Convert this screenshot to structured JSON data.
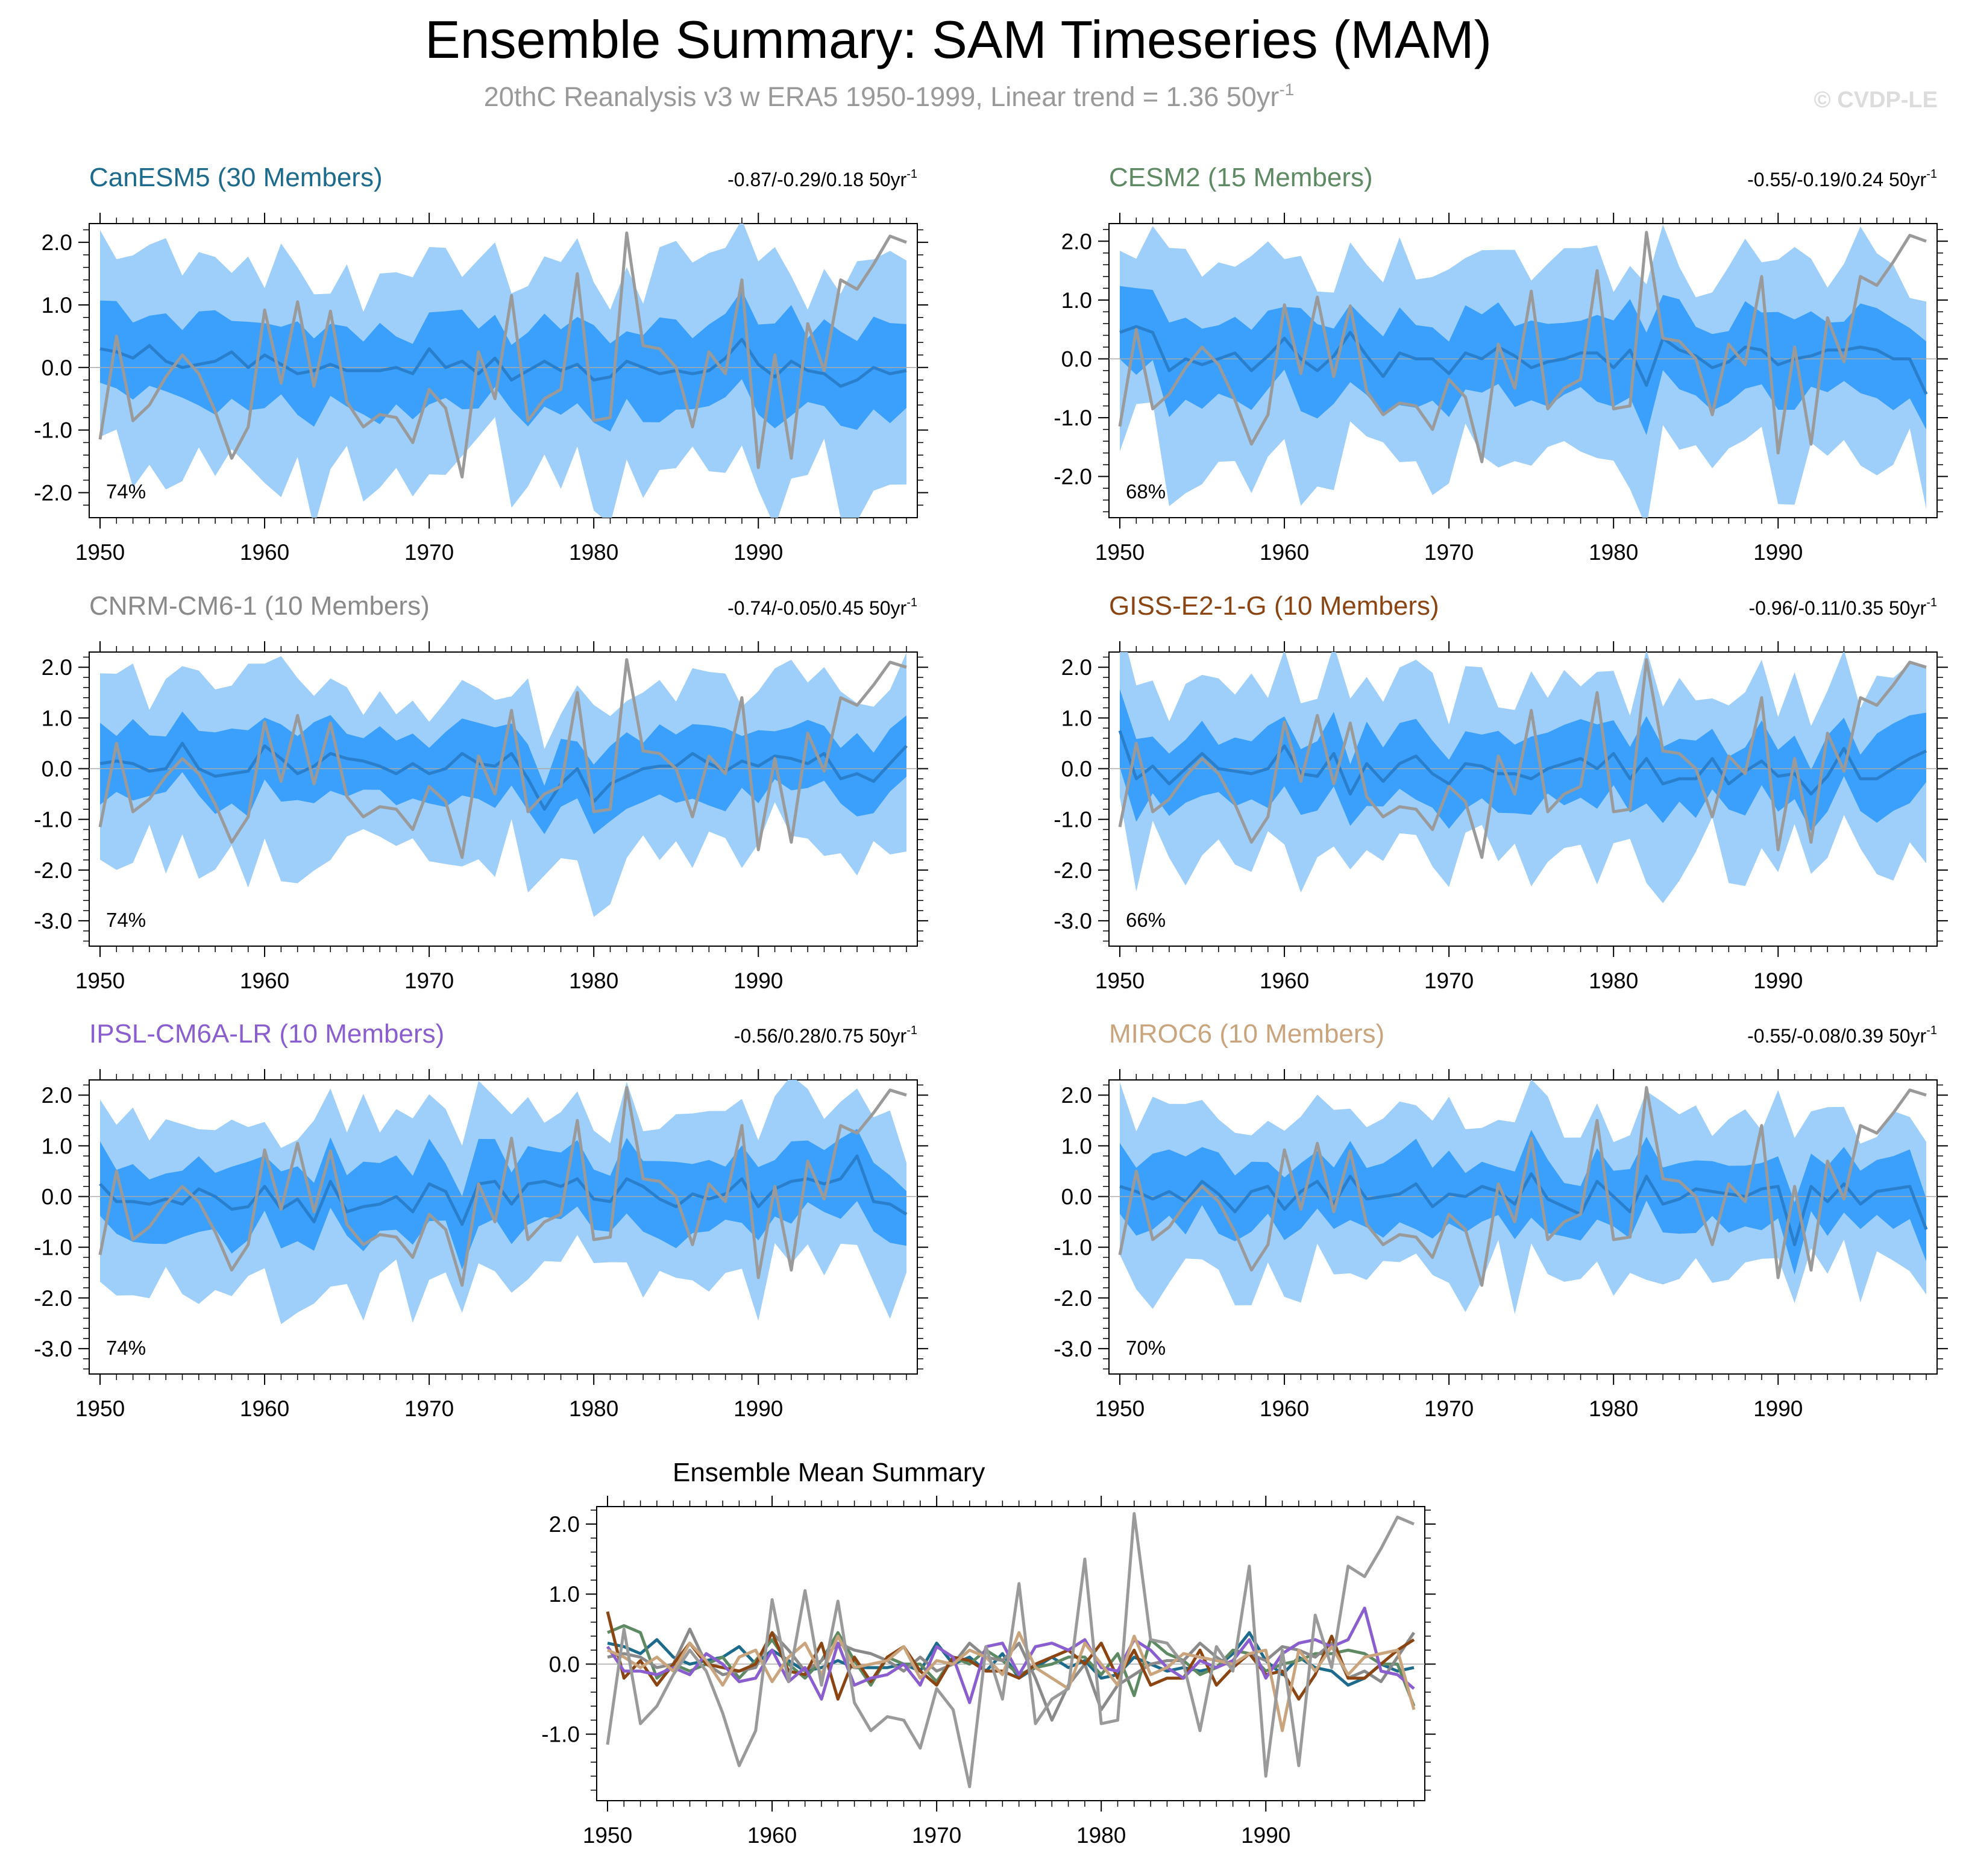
{
  "title": "Ensemble Summary: SAM Timeseries (MAM)",
  "subtitle": "20thC Reanalysis v3 w ERA5 1950-1999, Linear trend = 1.36 50yr",
  "subtitle_exp": "-1",
  "watermark": "© CVDP-LE",
  "colors": {
    "outer_band": "#9ecffa",
    "inner_band": "#3aa0fb",
    "ens_mean": "#2a7fcd",
    "obs": "#9a9a9a"
  },
  "obs_series": {
    "name": "20thC Reanalysis v3 w ERA5",
    "years": [
      1950,
      1951,
      1952,
      1953,
      1954,
      1955,
      1956,
      1957,
      1958,
      1959,
      1960,
      1961,
      1962,
      1963,
      1964,
      1965,
      1966,
      1967,
      1968,
      1969,
      1970,
      1971,
      1972,
      1973,
      1974,
      1975,
      1976,
      1977,
      1978,
      1979,
      1980,
      1981,
      1982,
      1983,
      1984,
      1985,
      1986,
      1987,
      1988,
      1989,
      1990,
      1991,
      1992,
      1993,
      1994,
      1995,
      1996,
      1997,
      1998,
      1999
    ],
    "values": [
      -1.15,
      0.5,
      -0.85,
      -0.6,
      -0.15,
      0.2,
      -0.1,
      -0.7,
      -1.45,
      -0.95,
      0.92,
      -0.25,
      1.05,
      -0.3,
      0.9,
      -0.55,
      -0.95,
      -0.75,
      -0.8,
      -1.2,
      -0.35,
      -0.65,
      -1.75,
      0.25,
      -0.5,
      1.15,
      -0.85,
      -0.5,
      -0.35,
      1.5,
      -0.85,
      -0.8,
      2.15,
      0.35,
      0.3,
      0.0,
      -0.95,
      0.25,
      -0.1,
      1.4,
      -1.6,
      0.2,
      -1.45,
      0.7,
      -0.05,
      1.4,
      1.25,
      1.65,
      2.1,
      2.0
    ]
  },
  "chart_data": [
    {
      "type": "line",
      "title": "CanESM5 (30 Members)",
      "title_color": "#1c6b8c",
      "trend_label": "-0.87/-0.29/0.18 50yr",
      "trend_exp": "-1",
      "percent_label": "74%",
      "x": [
        1950,
        1999
      ],
      "ylim": [
        -2.4,
        2.3
      ],
      "yticks": [
        -2.0,
        -1.0,
        0.0,
        1.0,
        2.0
      ],
      "yticklabels": [
        "-2.0",
        "-1.0",
        "0.0",
        "1.0",
        "2.0"
      ],
      "xticks": [
        1950,
        1960,
        1970,
        1980,
        1990
      ],
      "xticklabels": [
        "1950",
        "1960",
        "1970",
        "1980",
        "1990"
      ],
      "ens_mean": [
        0.3,
        0.25,
        0.15,
        0.35,
        0.1,
        0.0,
        0.05,
        0.1,
        0.25,
        0.0,
        0.2,
        0.05,
        -0.1,
        -0.05,
        0.05,
        -0.05,
        -0.05,
        -0.05,
        0.0,
        -0.1,
        0.3,
        0.0,
        0.1,
        -0.1,
        0.15,
        -0.2,
        -0.05,
        0.1,
        -0.05,
        0.05,
        -0.2,
        -0.15,
        0.1,
        0.0,
        -0.1,
        -0.05,
        -0.1,
        -0.05,
        0.15,
        0.45,
        0.05,
        -0.15,
        0.1,
        -0.05,
        -0.1,
        -0.3,
        -0.2,
        0.0,
        -0.1,
        -0.05
      ]
    },
    {
      "type": "line",
      "title": "CESM2 (15 Members)",
      "title_color": "#5e8a63",
      "trend_label": "-0.55/-0.19/0.24 50yr",
      "trend_exp": "-1",
      "percent_label": "68%",
      "x": [
        1950,
        1999
      ],
      "ylim": [
        -2.7,
        2.3
      ],
      "yticks": [
        -2.0,
        -1.0,
        0.0,
        1.0,
        2.0
      ],
      "yticklabels": [
        "-2.0",
        "-1.0",
        "0.0",
        "1.0",
        "2.0"
      ],
      "xticks": [
        1950,
        1960,
        1970,
        1980,
        1990
      ],
      "xticklabels": [
        "1950",
        "1960",
        "1970",
        "1980",
        "1990"
      ],
      "ens_mean": [
        0.45,
        0.55,
        0.45,
        -0.2,
        0.0,
        -0.1,
        0.0,
        0.1,
        -0.2,
        0.05,
        0.35,
        0.0,
        -0.2,
        0.05,
        0.45,
        0.05,
        -0.3,
        0.1,
        0.0,
        0.0,
        -0.25,
        0.1,
        0.0,
        0.2,
        0.05,
        -0.15,
        -0.05,
        0.0,
        0.1,
        0.1,
        -0.15,
        0.15,
        -0.45,
        0.35,
        0.15,
        0.05,
        -0.15,
        -0.05,
        0.2,
        0.15,
        -0.1,
        0.0,
        0.05,
        0.15,
        0.15,
        0.2,
        0.15,
        0.0,
        0.0,
        -0.6
      ]
    },
    {
      "type": "line",
      "title": "CNRM-CM6-1 (10 Members)",
      "title_color": "#8a8a8a",
      "trend_label": "-0.74/-0.05/0.45 50yr",
      "trend_exp": "-1",
      "percent_label": "74%",
      "x": [
        1950,
        1999
      ],
      "ylim": [
        -3.5,
        2.3
      ],
      "yticks": [
        -3.0,
        -2.0,
        -1.0,
        0.0,
        1.0,
        2.0
      ],
      "yticklabels": [
        "-3.0",
        "-2.0",
        "-1.0",
        "0.0",
        "1.0",
        "2.0"
      ],
      "xticks": [
        1950,
        1960,
        1970,
        1980,
        1990
      ],
      "xticklabels": [
        "1950",
        "1960",
        "1970",
        "1980",
        "1990"
      ],
      "ens_mean": [
        0.1,
        0.15,
        0.1,
        -0.05,
        0.0,
        0.5,
        0.0,
        -0.15,
        -0.1,
        -0.05,
        0.45,
        0.2,
        -0.1,
        0.05,
        0.3,
        0.2,
        0.15,
        0.05,
        -0.1,
        0.1,
        -0.1,
        0.0,
        0.3,
        0.1,
        0.05,
        0.3,
        -0.2,
        -0.8,
        -0.3,
        0.0,
        -0.65,
        -0.3,
        -0.15,
        0.0,
        0.05,
        0.05,
        0.3,
        0.1,
        -0.05,
        0.15,
        0.05,
        0.25,
        0.2,
        0.1,
        0.3,
        -0.2,
        -0.1,
        -0.25,
        0.1,
        0.45
      ]
    },
    {
      "type": "line",
      "title": "GISS-E2-1-G (10 Members)",
      "title_color": "#8b4513",
      "trend_label": "-0.96/-0.11/0.35 50yr",
      "trend_exp": "-1",
      "percent_label": "66%",
      "x": [
        1950,
        1999
      ],
      "ylim": [
        -3.5,
        2.3
      ],
      "yticks": [
        -3.0,
        -2.0,
        -1.0,
        0.0,
        1.0,
        2.0
      ],
      "yticklabels": [
        "-3.0",
        "-2.0",
        "-1.0",
        "0.0",
        "1.0",
        "2.0"
      ],
      "xticks": [
        1950,
        1960,
        1970,
        1980,
        1990
      ],
      "xticklabels": [
        "1950",
        "1960",
        "1970",
        "1980",
        "1990"
      ],
      "ens_mean": [
        0.75,
        -0.2,
        0.05,
        -0.3,
        0.0,
        0.3,
        0.0,
        -0.05,
        -0.1,
        0.0,
        0.45,
        -0.1,
        -0.15,
        0.3,
        -0.5,
        0.1,
        -0.25,
        0.1,
        0.25,
        -0.1,
        -0.3,
        0.1,
        0.05,
        -0.1,
        -0.1,
        -0.2,
        0.0,
        0.1,
        0.2,
        0.0,
        0.3,
        -0.2,
        0.2,
        -0.3,
        -0.2,
        -0.2,
        0.2,
        -0.3,
        -0.05,
        0.15,
        -0.15,
        -0.1,
        -0.5,
        -0.15,
        0.4,
        -0.2,
        -0.2,
        0.0,
        0.2,
        0.35
      ]
    },
    {
      "type": "line",
      "title": "IPSL-CM6A-LR (10 Members)",
      "title_color": "#8a5ecf",
      "trend_label": "-0.56/0.28/0.75 50yr",
      "trend_exp": "-1",
      "percent_label": "74%",
      "x": [
        1950,
        1999
      ],
      "ylim": [
        -3.5,
        2.3
      ],
      "yticks": [
        -3.0,
        -2.0,
        -1.0,
        0.0,
        1.0,
        2.0
      ],
      "yticklabels": [
        "-3.0",
        "-2.0",
        "-1.0",
        "0.0",
        "1.0",
        "2.0"
      ],
      "xticks": [
        1950,
        1960,
        1970,
        1980,
        1990
      ],
      "xticklabels": [
        "1950",
        "1960",
        "1970",
        "1980",
        "1990"
      ],
      "ens_mean": [
        0.25,
        -0.1,
        -0.1,
        -0.15,
        -0.05,
        -0.15,
        0.15,
        0.0,
        -0.25,
        -0.2,
        0.2,
        -0.25,
        -0.05,
        -0.5,
        0.3,
        -0.3,
        -0.2,
        -0.15,
        0.0,
        -0.3,
        0.25,
        0.1,
        -0.55,
        0.25,
        0.3,
        -0.15,
        0.25,
        0.3,
        0.2,
        0.35,
        -0.05,
        -0.1,
        0.35,
        0.2,
        -0.05,
        -0.2,
        0.05,
        -0.05,
        0.05,
        0.35,
        -0.2,
        0.15,
        0.3,
        0.35,
        0.25,
        0.35,
        0.8,
        -0.1,
        -0.15,
        -0.35
      ]
    },
    {
      "type": "line",
      "title": "MIROC6 (10 Members)",
      "title_color": "#c9a47c",
      "trend_label": "-0.55/-0.08/0.39 50yr",
      "trend_exp": "-1",
      "percent_label": "70%",
      "x": [
        1950,
        1999
      ],
      "ylim": [
        -3.5,
        2.3
      ],
      "yticks": [
        -3.0,
        -2.0,
        -1.0,
        0.0,
        1.0,
        2.0
      ],
      "yticklabels": [
        "-3.0",
        "-2.0",
        "-1.0",
        "0.0",
        "1.0",
        "2.0"
      ],
      "xticks": [
        1950,
        1960,
        1970,
        1980,
        1990
      ],
      "xticklabels": [
        "1950",
        "1960",
        "1970",
        "1980",
        "1990"
      ],
      "ens_mean": [
        0.2,
        0.1,
        -0.05,
        0.1,
        -0.1,
        0.3,
        0.05,
        -0.3,
        0.1,
        0.2,
        -0.25,
        0.1,
        0.3,
        -0.15,
        0.4,
        -0.05,
        0.0,
        0.05,
        0.25,
        -0.2,
        0.05,
        0.0,
        0.2,
        0.1,
        -0.15,
        0.45,
        -0.05,
        -0.2,
        -0.35,
        0.3,
        0.0,
        -0.3,
        0.4,
        -0.15,
        -0.05,
        0.15,
        0.1,
        0.05,
        0.0,
        0.15,
        0.2,
        -0.95,
        0.2,
        -0.1,
        0.25,
        -0.15,
        0.1,
        0.15,
        0.2,
        -0.65
      ]
    },
    {
      "type": "line",
      "title": "Ensemble Mean Summary",
      "title_color": "#000000",
      "x": [
        1950,
        1999
      ],
      "ylim": [
        -1.95,
        2.25
      ],
      "yticks": [
        -1.0,
        0.0,
        1.0,
        2.0
      ],
      "yticklabels": [
        "-1.0",
        "0.0",
        "1.0",
        "2.0"
      ],
      "xticks": [
        1950,
        1960,
        1970,
        1980,
        1990
      ],
      "xticklabels": [
        "1950",
        "1960",
        "1970",
        "1980",
        "1990"
      ],
      "series_colors": [
        "#1c6b8c",
        "#5e8a63",
        "#8a8a8a",
        "#8b4513",
        "#8a5ecf",
        "#c9a47c"
      ]
    }
  ]
}
